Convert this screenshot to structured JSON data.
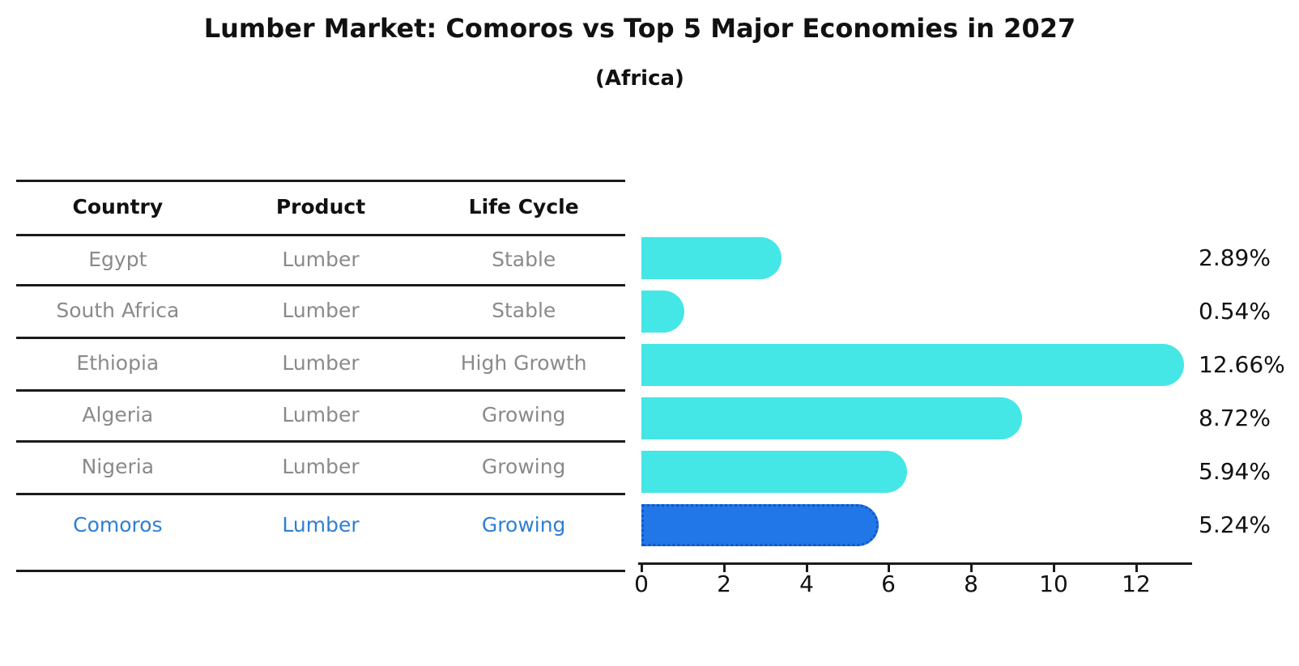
{
  "title": "Lumber Market: Comoros vs Top 5 Major Economies in 2027",
  "subtitle": "(Africa)",
  "table": {
    "headers": [
      "Country",
      "Product",
      "Life Cycle"
    ],
    "rows": [
      {
        "country": "Egypt",
        "product": "Lumber",
        "life_cycle": "Stable"
      },
      {
        "country": "South Africa",
        "product": "Lumber",
        "life_cycle": "Stable"
      },
      {
        "country": "Ethiopia",
        "product": "Lumber",
        "life_cycle": "High Growth"
      },
      {
        "country": "Algeria",
        "product": "Lumber",
        "life_cycle": "Growing"
      },
      {
        "country": "Nigeria",
        "product": "Lumber",
        "life_cycle": "Growing"
      },
      {
        "country": "Comoros",
        "product": "Lumber",
        "life_cycle": "Growing"
      }
    ],
    "highlighted_row": "Comoros"
  },
  "chart_data": {
    "type": "bar",
    "orientation": "horizontal",
    "title": "Lumber Market: Comoros vs Top 5 Major Economies in 2027 (Africa)",
    "categories": [
      "Egypt",
      "South Africa",
      "Ethiopia",
      "Algeria",
      "Nigeria",
      "Comoros"
    ],
    "values": [
      2.89,
      0.54,
      12.66,
      8.72,
      5.94,
      5.24
    ],
    "value_labels": [
      "2.89%",
      "0.54%",
      "12.66%",
      "8.72%",
      "5.94%",
      "5.24%"
    ],
    "xticks": [
      0,
      2,
      4,
      6,
      8,
      10,
      12
    ],
    "xlim": [
      0,
      13.4
    ],
    "grid": false,
    "legend": null,
    "bar_color": "#45E6E6",
    "highlight_bar_color": "#2176E8",
    "highlight_border_color": "#0F58C8",
    "highlight_index": 5
  }
}
